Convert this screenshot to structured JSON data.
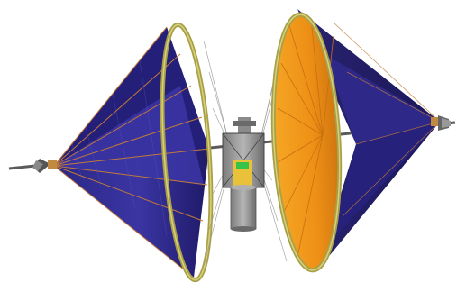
{
  "scene": {
    "subject": "spacecraft-with-two-conical-sails",
    "colors": {
      "background": "#ffffff",
      "panel_dark": "#1f1a66",
      "panel_mid": "#2f2a8c",
      "panel_light": "#3d38a8",
      "panel_seam": "#c27a3a",
      "inner_orange": "#f29a1a",
      "inner_orange_dark": "#c8700f",
      "rim": "#a8a048",
      "rim_light": "#d8d07a",
      "boom": "#5a5a5a",
      "bus_gray": "#9a9a9a",
      "bus_dark": "#555555",
      "green_panel": "#37c24a",
      "yellow_panel": "#e9c23a"
    }
  }
}
